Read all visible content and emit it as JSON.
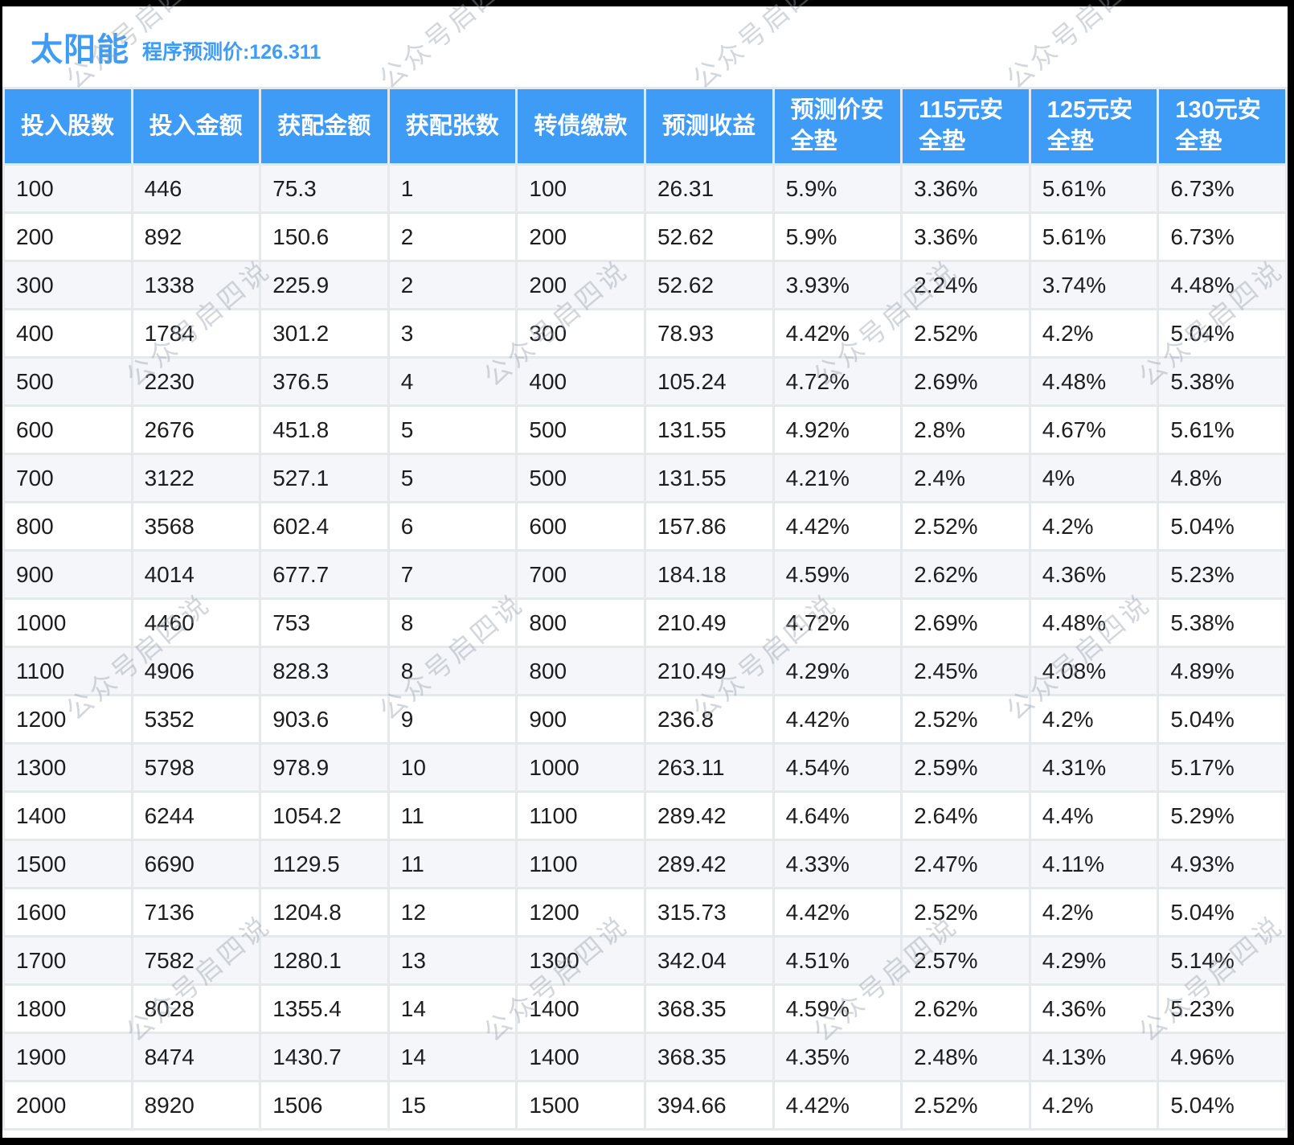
{
  "header": {
    "title": "太阳能",
    "subtitle": "程序预测价:126.311"
  },
  "watermark": {
    "text": "公众号启四说"
  },
  "table": {
    "columns": [
      {
        "label": "投入股数",
        "lines": [
          "投入股数"
        ]
      },
      {
        "label": "投入金额",
        "lines": [
          "投入金额"
        ]
      },
      {
        "label": "获配金额",
        "lines": [
          "获配金额"
        ]
      },
      {
        "label": "获配张数",
        "lines": [
          "获配张数"
        ]
      },
      {
        "label": "转债缴款",
        "lines": [
          "转债缴款"
        ]
      },
      {
        "label": "预测收益",
        "lines": [
          "预测收益"
        ]
      },
      {
        "label": "预测价安全垫",
        "lines": [
          "预测价安",
          "全垫"
        ]
      },
      {
        "label": "115元安全垫",
        "lines": [
          "115元安",
          "全垫"
        ]
      },
      {
        "label": "125元安全垫",
        "lines": [
          "125元安",
          "全垫"
        ]
      },
      {
        "label": "130元安全垫",
        "lines": [
          "130元安",
          "全垫"
        ]
      }
    ],
    "rows": [
      [
        "100",
        "446",
        "75.3",
        "1",
        "100",
        "26.31",
        "5.9%",
        "3.36%",
        "5.61%",
        "6.73%"
      ],
      [
        "200",
        "892",
        "150.6",
        "2",
        "200",
        "52.62",
        "5.9%",
        "3.36%",
        "5.61%",
        "6.73%"
      ],
      [
        "300",
        "1338",
        "225.9",
        "2",
        "200",
        "52.62",
        "3.93%",
        "2.24%",
        "3.74%",
        "4.48%"
      ],
      [
        "400",
        "1784",
        "301.2",
        "3",
        "300",
        "78.93",
        "4.42%",
        "2.52%",
        "4.2%",
        "5.04%"
      ],
      [
        "500",
        "2230",
        "376.5",
        "4",
        "400",
        "105.24",
        "4.72%",
        "2.69%",
        "4.48%",
        "5.38%"
      ],
      [
        "600",
        "2676",
        "451.8",
        "5",
        "500",
        "131.55",
        "4.92%",
        "2.8%",
        "4.67%",
        "5.61%"
      ],
      [
        "700",
        "3122",
        "527.1",
        "5",
        "500",
        "131.55",
        "4.21%",
        "2.4%",
        "4%",
        "4.8%"
      ],
      [
        "800",
        "3568",
        "602.4",
        "6",
        "600",
        "157.86",
        "4.42%",
        "2.52%",
        "4.2%",
        "5.04%"
      ],
      [
        "900",
        "4014",
        "677.7",
        "7",
        "700",
        "184.18",
        "4.59%",
        "2.62%",
        "4.36%",
        "5.23%"
      ],
      [
        "1000",
        "4460",
        "753",
        "8",
        "800",
        "210.49",
        "4.72%",
        "2.69%",
        "4.48%",
        "5.38%"
      ],
      [
        "1100",
        "4906",
        "828.3",
        "8",
        "800",
        "210.49",
        "4.29%",
        "2.45%",
        "4.08%",
        "4.89%"
      ],
      [
        "1200",
        "5352",
        "903.6",
        "9",
        "900",
        "236.8",
        "4.42%",
        "2.52%",
        "4.2%",
        "5.04%"
      ],
      [
        "1300",
        "5798",
        "978.9",
        "10",
        "1000",
        "263.11",
        "4.54%",
        "2.59%",
        "4.31%",
        "5.17%"
      ],
      [
        "1400",
        "6244",
        "1054.2",
        "11",
        "1100",
        "289.42",
        "4.64%",
        "2.64%",
        "4.4%",
        "5.29%"
      ],
      [
        "1500",
        "6690",
        "1129.5",
        "11",
        "1100",
        "289.42",
        "4.33%",
        "2.47%",
        "4.11%",
        "4.93%"
      ],
      [
        "1600",
        "7136",
        "1204.8",
        "12",
        "1200",
        "315.73",
        "4.42%",
        "2.52%",
        "4.2%",
        "5.04%"
      ],
      [
        "1700",
        "7582",
        "1280.1",
        "13",
        "1300",
        "342.04",
        "4.51%",
        "2.57%",
        "4.29%",
        "5.14%"
      ],
      [
        "1800",
        "8028",
        "1355.4",
        "14",
        "1400",
        "368.35",
        "4.59%",
        "2.62%",
        "4.36%",
        "5.23%"
      ],
      [
        "1900",
        "8474",
        "1430.7",
        "14",
        "1400",
        "368.35",
        "4.35%",
        "2.48%",
        "4.13%",
        "4.96%"
      ],
      [
        "2000",
        "8920",
        "1506",
        "15",
        "1500",
        "394.66",
        "4.42%",
        "2.52%",
        "4.2%",
        "5.04%"
      ]
    ]
  },
  "colors": {
    "accent_blue": "#3f9cf6",
    "row_alt": "#f4f6f9",
    "grid_line": "#e6e9ec",
    "text": "#1d1d1f",
    "frame": "#000000"
  }
}
